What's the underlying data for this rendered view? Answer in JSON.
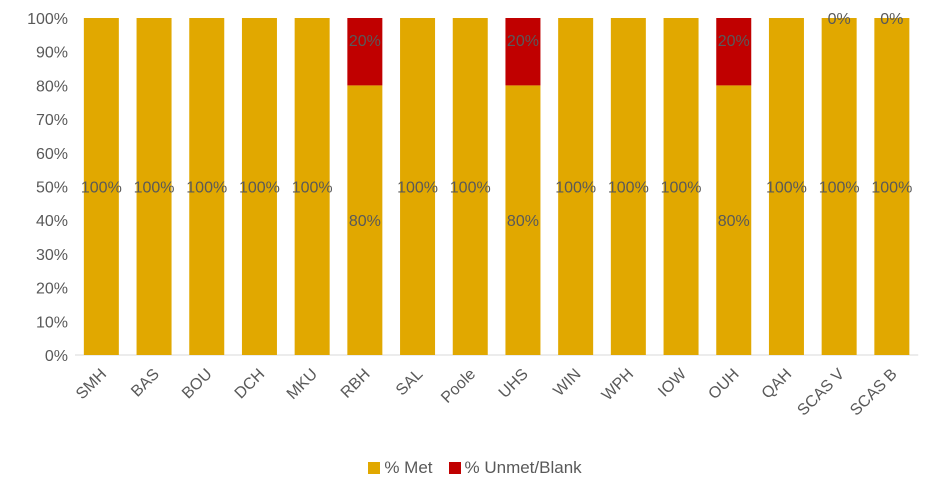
{
  "chart_data": {
    "type": "bar",
    "stacked": true,
    "categories": [
      "SMH",
      "BAS",
      "BOU",
      "DCH",
      "MKU",
      "RBH",
      "SAL",
      "Poole",
      "UHS",
      "WIN",
      "WPH",
      "IOW",
      "OUH",
      "QAH",
      "SCAS V",
      "SCAS B"
    ],
    "series": [
      {
        "name": "% Met",
        "color": "#E1A800",
        "values": [
          100,
          100,
          100,
          100,
          100,
          80,
          100,
          100,
          80,
          100,
          100,
          100,
          80,
          100,
          100,
          100
        ],
        "labels": [
          "100%",
          "100%",
          "100%",
          "100%",
          "100%",
          "80%",
          "100%",
          "100%",
          "80%",
          "100%",
          "100%",
          "100%",
          "80%",
          "100%",
          "100%",
          "100%"
        ]
      },
      {
        "name": "% Unmet/Blank",
        "color": "#C00000",
        "values": [
          0,
          0,
          0,
          0,
          0,
          20,
          0,
          0,
          20,
          0,
          0,
          0,
          20,
          0,
          0,
          0
        ],
        "labels": [
          "",
          "",
          "",
          "",
          "",
          "20%",
          "",
          "",
          "20%",
          "",
          "",
          "",
          "20%",
          "",
          "0%",
          "0%"
        ]
      }
    ],
    "y_ticks": [
      "0%",
      "10%",
      "20%",
      "30%",
      "40%",
      "50%",
      "60%",
      "70%",
      "80%",
      "90%",
      "100%"
    ],
    "ylim": [
      0,
      100
    ],
    "legend_position": "bottom"
  }
}
